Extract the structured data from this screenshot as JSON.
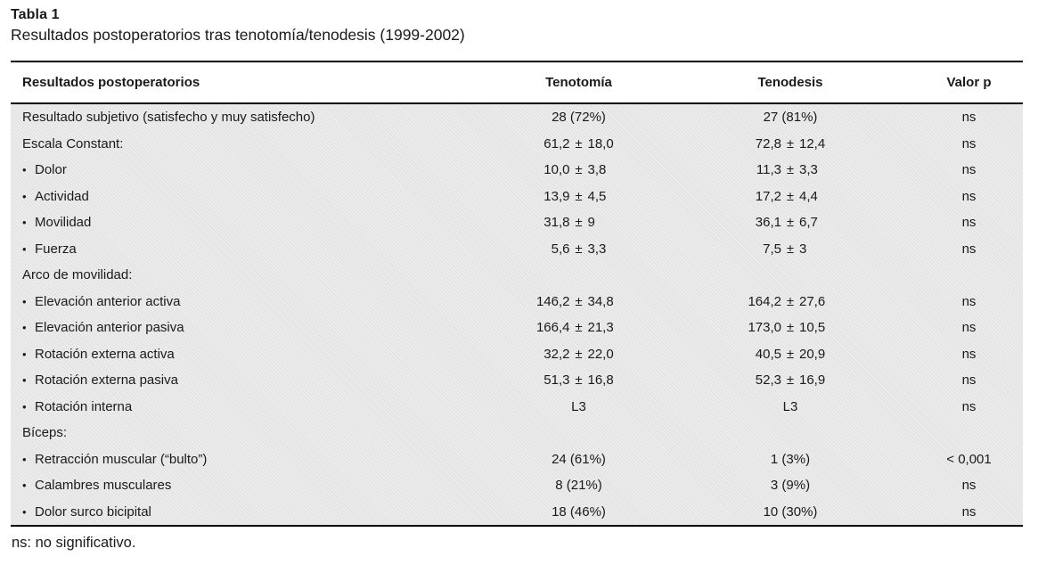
{
  "caption": {
    "label": "Tabla 1",
    "title": "Resultados postoperatorios tras tenotomía/tenodesis (1999-2002)"
  },
  "footnote": "ns: no significativo.",
  "colors": {
    "body_background": "#e5e5e5",
    "rule": "#000000",
    "text": "#1a1a1a"
  },
  "chart_data": {
    "type": "table",
    "title": "Resultados postoperatorios tras tenotomía/tenodesis (1999-2002)",
    "columns": [
      "Resultados postoperatorios",
      "Tenotomía",
      "Tenodesis",
      "Valor p"
    ],
    "rows": [
      {
        "label": "Resultado subjetivo (satisfecho y muy satisfecho)",
        "bullet": false,
        "tenotomia": {
          "text": "28 (72%)"
        },
        "tenodesis": {
          "text": "27 (81%)"
        },
        "p": "ns"
      },
      {
        "label": "Escala Constant:",
        "bullet": false,
        "tenotomia": {
          "mean": "61,2",
          "sd": "18,0"
        },
        "tenodesis": {
          "mean": "72,8",
          "sd": "12,4"
        },
        "p": "ns"
      },
      {
        "label": "Dolor",
        "bullet": true,
        "tenotomia": {
          "mean": "10,0",
          "sd": "3,8"
        },
        "tenodesis": {
          "mean": "11,3",
          "sd": "3,3"
        },
        "p": "ns"
      },
      {
        "label": "Actividad",
        "bullet": true,
        "tenotomia": {
          "mean": "13,9",
          "sd": "4,5"
        },
        "tenodesis": {
          "mean": "17,2",
          "sd": "4,4"
        },
        "p": "ns"
      },
      {
        "label": "Movilidad",
        "bullet": true,
        "tenotomia": {
          "mean": "31,8",
          "sd": "9"
        },
        "tenodesis": {
          "mean": "36,1",
          "sd": "6,7"
        },
        "p": "ns"
      },
      {
        "label": "Fuerza",
        "bullet": true,
        "tenotomia": {
          "mean": "5,6",
          "sd": "3,3"
        },
        "tenodesis": {
          "mean": "7,5",
          "sd": "3"
        },
        "p": "ns"
      },
      {
        "label": "Arco de movilidad:",
        "bullet": false,
        "tenotomia": null,
        "tenodesis": null,
        "p": null
      },
      {
        "label": "Elevación anterior activa",
        "bullet": true,
        "tenotomia": {
          "mean": "146,2",
          "sd": "34,8"
        },
        "tenodesis": {
          "mean": "164,2",
          "sd": "27,6"
        },
        "p": "ns"
      },
      {
        "label": "Elevación anterior pasiva",
        "bullet": true,
        "tenotomia": {
          "mean": "166,4",
          "sd": "21,3"
        },
        "tenodesis": {
          "mean": "173,0",
          "sd": "10,5"
        },
        "p": "ns"
      },
      {
        "label": "Rotación externa activa",
        "bullet": true,
        "tenotomia": {
          "mean": "32,2",
          "sd": "22,0"
        },
        "tenodesis": {
          "mean": "40,5",
          "sd": "20,9"
        },
        "p": "ns"
      },
      {
        "label": "Rotación externa pasiva",
        "bullet": true,
        "tenotomia": {
          "mean": "51,3",
          "sd": "16,8"
        },
        "tenodesis": {
          "mean": "52,3",
          "sd": "16,9"
        },
        "p": "ns"
      },
      {
        "label": "Rotación interna",
        "bullet": true,
        "tenotomia": {
          "text": "L3"
        },
        "tenodesis": {
          "text": "L3"
        },
        "p": "ns"
      },
      {
        "label": "Bíceps:",
        "bullet": false,
        "tenotomia": null,
        "tenodesis": null,
        "p": null
      },
      {
        "label": "Retracción muscular (“bulto”)",
        "bullet": true,
        "tenotomia": {
          "text": "24 (61%)"
        },
        "tenodesis": {
          "text": "1 (3%)"
        },
        "p": "< 0,001"
      },
      {
        "label": "Calambres musculares",
        "bullet": true,
        "tenotomia": {
          "text": "8 (21%)"
        },
        "tenodesis": {
          "text": "3 (9%)"
        },
        "p": "ns"
      },
      {
        "label": "Dolor surco bicipital",
        "bullet": true,
        "tenotomia": {
          "text": "18 (46%)"
        },
        "tenodesis": {
          "text": "10 (30%)"
        },
        "p": "ns"
      }
    ],
    "symbols": {
      "plus_minus": "±",
      "bullet": "•"
    }
  }
}
